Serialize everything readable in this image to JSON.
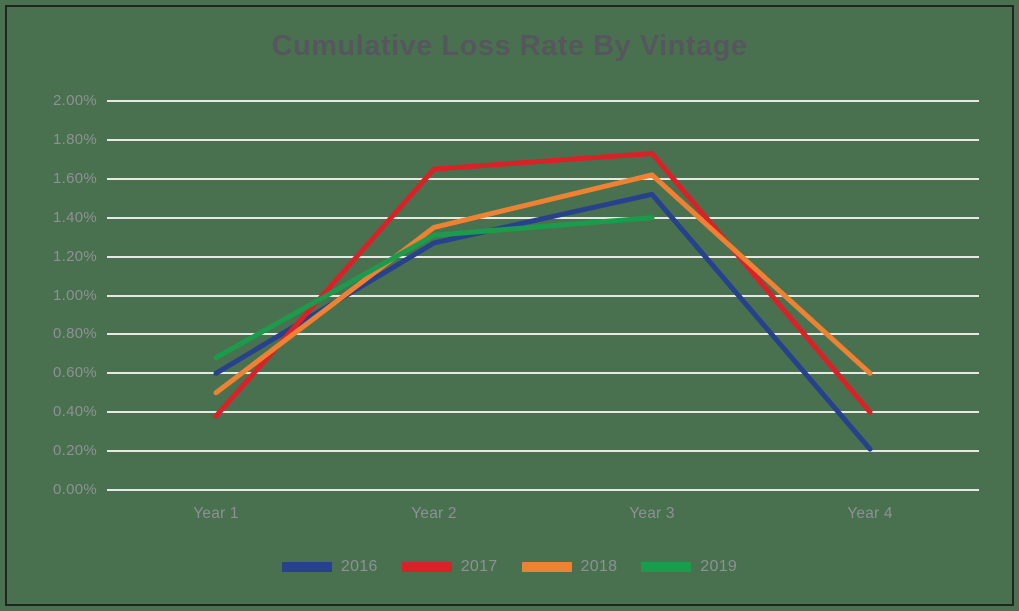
{
  "colors": {
    "background": "#49714f",
    "border": "#20251f",
    "gridline": "#e6e9e2",
    "title_text": "#55575d",
    "axis_text": "#8d9195"
  },
  "chart_data": {
    "type": "line",
    "title": "Cumulative Loss Rate By Vintage",
    "categories": [
      "Year 1",
      "Year 2",
      "Year 3",
      "Year 4"
    ],
    "series": [
      {
        "name": "2016",
        "color": "#27418d",
        "values": [
          0.6,
          1.27,
          1.52,
          0.21
        ]
      },
      {
        "name": "2017",
        "color": "#da2128",
        "values": [
          0.38,
          1.65,
          1.73,
          0.4
        ]
      },
      {
        "name": "2018",
        "color": "#ef8133",
        "values": [
          0.5,
          1.35,
          1.62,
          0.6
        ]
      },
      {
        "name": "2019",
        "color": "#1b9c4c",
        "values": [
          0.68,
          1.31,
          1.4,
          null
        ]
      }
    ],
    "ylim": [
      0,
      2.0
    ],
    "ytick_step": 0.2,
    "ytick_labels_top_to_bottom": [
      "2.00%",
      "1.80%",
      "1.60%",
      "1.40%",
      "1.20%",
      "1.00%",
      "0.80%",
      "0.60%",
      "0.40%",
      "0.20%",
      "0.00%"
    ],
    "value_unit": "percent",
    "grid": "horizontal",
    "legend_position": "bottom"
  }
}
